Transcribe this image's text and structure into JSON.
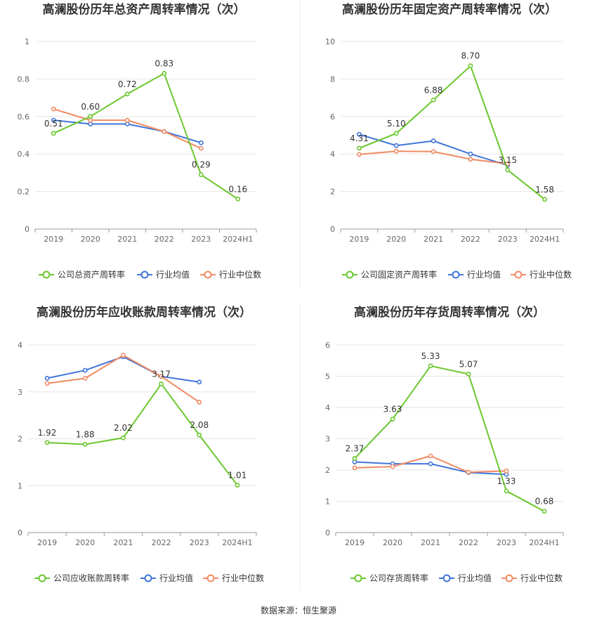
{
  "footer": {
    "source": "数据来源：恒生聚源"
  },
  "legend_labels": {
    "industry_avg": "行业均值",
    "industry_median": "行业中位数"
  },
  "colors": {
    "company": "#6ac72d",
    "industry_avg": "#3f75d9",
    "industry_median": "#f08a63",
    "grid": "#e6e6e6",
    "axis": "#999999"
  },
  "chart_data": [
    {
      "type": "line",
      "title": "高澜股份历年总资产周转率情况（次）",
      "categories": [
        "2019",
        "2020",
        "2021",
        "2022",
        "2023",
        "2024H1"
      ],
      "ylim": [
        0,
        1
      ],
      "yticks": [
        "0",
        "0.2",
        "0.4",
        "0.6",
        "0.8",
        "1"
      ],
      "series": [
        {
          "name": "公司总资产周转率",
          "values": [
            0.51,
            0.6,
            0.72,
            0.83,
            0.29,
            0.16
          ],
          "labels": [
            "0.51",
            "0.60",
            "0.72",
            "0.83",
            "0.29",
            "0.16"
          ]
        },
        {
          "name": "行业均值",
          "values": [
            0.58,
            0.56,
            0.56,
            0.52,
            0.46,
            null
          ]
        },
        {
          "name": "行业中位数",
          "values": [
            0.64,
            0.58,
            0.58,
            0.52,
            0.43,
            null
          ]
        }
      ]
    },
    {
      "type": "line",
      "title": "高澜股份历年固定资产周转率情况（次）",
      "categories": [
        "2019",
        "2020",
        "2021",
        "2022",
        "2023",
        "2024H1"
      ],
      "ylim": [
        0,
        10
      ],
      "yticks": [
        "0",
        "2",
        "4",
        "6",
        "8",
        "10"
      ],
      "series": [
        {
          "name": "公司固定资产周转率",
          "values": [
            4.31,
            5.1,
            6.88,
            8.7,
            3.15,
            1.58
          ],
          "labels": [
            "4.31",
            "5.10",
            "6.88",
            "8.70",
            "3.15",
            "1.58"
          ]
        },
        {
          "name": "行业均值",
          "values": [
            5.05,
            4.45,
            4.7,
            4.0,
            3.4,
            null
          ]
        },
        {
          "name": "行业中位数",
          "values": [
            3.98,
            4.15,
            4.13,
            3.72,
            3.48,
            null
          ]
        }
      ]
    },
    {
      "type": "line",
      "title": "高澜股份历年应收账款周转率情况（次）",
      "categories": [
        "2019",
        "2020",
        "2021",
        "2022",
        "2023",
        "2024H1"
      ],
      "ylim": [
        0,
        4
      ],
      "yticks": [
        "0",
        "1",
        "2",
        "3",
        "4"
      ],
      "series": [
        {
          "name": "公司应收账款周转率",
          "values": [
            1.92,
            1.88,
            2.02,
            3.17,
            2.08,
            1.01
          ],
          "labels": [
            "1.92",
            "1.88",
            "2.02",
            "3.17",
            "2.08",
            "1.01"
          ]
        },
        {
          "name": "行业均值",
          "values": [
            3.29,
            3.46,
            3.75,
            3.33,
            3.21,
            null
          ]
        },
        {
          "name": "行业中位数",
          "values": [
            3.18,
            3.29,
            3.78,
            3.33,
            2.78,
            null
          ]
        }
      ]
    },
    {
      "type": "line",
      "title": "高澜股份历年存货周转率情况（次）",
      "categories": [
        "2019",
        "2020",
        "2021",
        "2022",
        "2023",
        "2024H1"
      ],
      "ylim": [
        0,
        6
      ],
      "yticks": [
        "0",
        "1",
        "2",
        "3",
        "4",
        "5",
        "6"
      ],
      "series": [
        {
          "name": "公司存货周转率",
          "values": [
            2.37,
            3.63,
            5.33,
            5.07,
            1.33,
            0.68
          ],
          "labels": [
            "2.37",
            "3.63",
            "5.33",
            "5.07",
            "1.33",
            "0.68"
          ]
        },
        {
          "name": "行业均值",
          "values": [
            2.26,
            2.2,
            2.2,
            1.92,
            1.86,
            null
          ]
        },
        {
          "name": "行业中位数",
          "values": [
            2.07,
            2.11,
            2.45,
            1.93,
            1.97,
            null
          ]
        }
      ]
    }
  ]
}
